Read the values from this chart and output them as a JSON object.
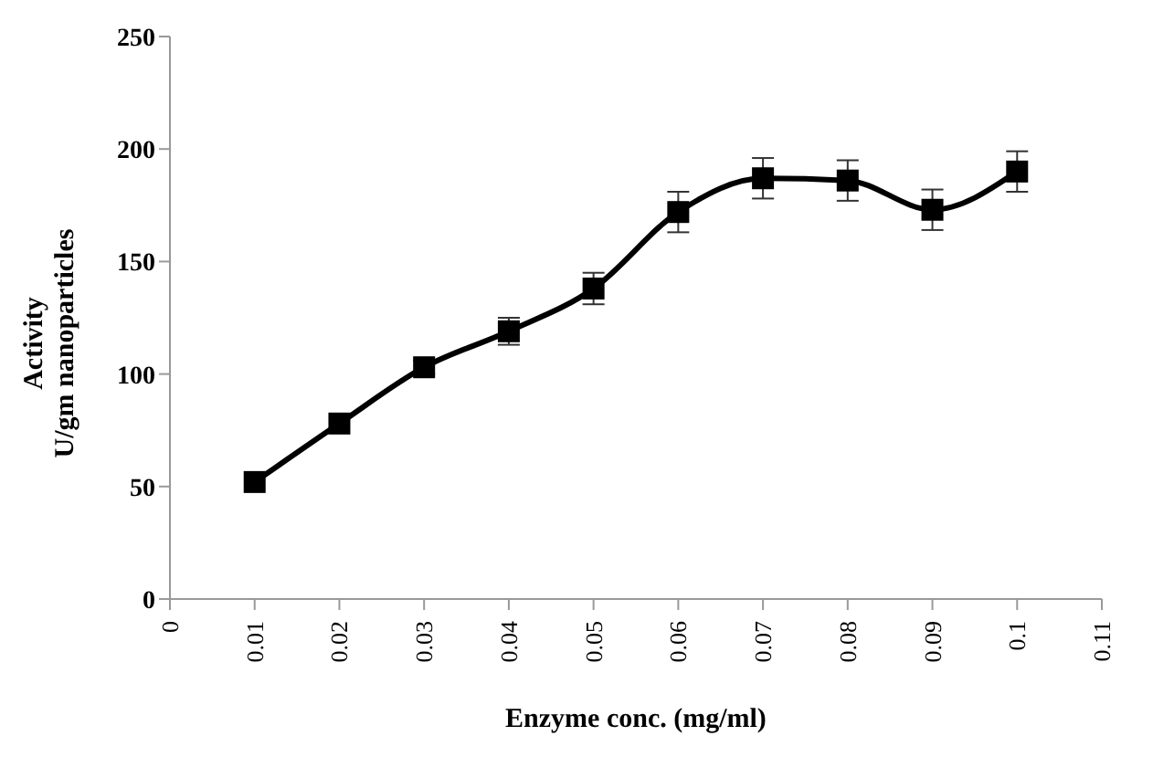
{
  "chart_data": {
    "type": "line",
    "xlabel": "Enzyme conc. (mg/ml)",
    "ylabel": "Activity\nU/gm nanoparticles",
    "x": [
      0.01,
      0.02,
      0.03,
      0.04,
      0.05,
      0.06,
      0.07,
      0.08,
      0.09,
      0.1
    ],
    "series": [
      {
        "color": "#000000",
        "values": [
          52,
          78,
          103,
          119,
          138,
          172,
          187,
          186,
          173,
          190
        ],
        "errors": [
          null,
          null,
          3,
          6,
          7,
          9,
          9,
          9,
          9,
          9
        ]
      }
    ],
    "xlim": [
      0,
      0.11
    ],
    "xticks": [
      0,
      0.01,
      0.02,
      0.03,
      0.04,
      0.05,
      0.06,
      0.07,
      0.08,
      0.09,
      0.1,
      0.11
    ],
    "ylim": [
      0,
      250
    ],
    "yticks": [
      0,
      50,
      100,
      150,
      200,
      250
    ],
    "marker": "square",
    "line_style": "solid",
    "grid": false,
    "legend": false
  }
}
